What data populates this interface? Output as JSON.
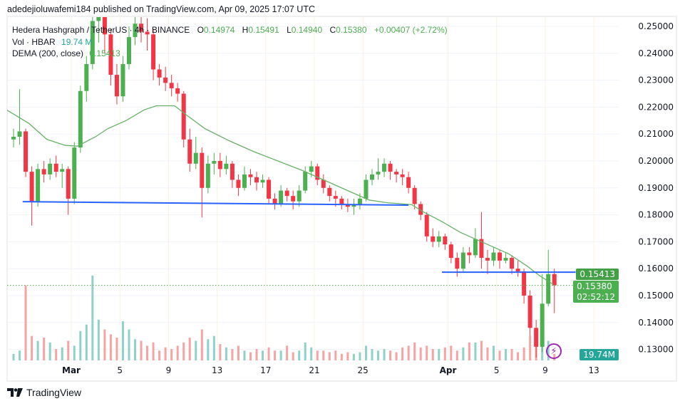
{
  "header": {
    "published": "adedejioluwafemi184 published on TradingView.com, Apr 09, 2025 17:07 UTC"
  },
  "legend": {
    "symbol": "Hedera Hashgraph / TetherUS · 4h · BINANCE",
    "open_label": "O",
    "open": "0.14974",
    "high_label": "H",
    "high": "0.15491",
    "low_label": "L",
    "low": "0.14940",
    "close_label": "C",
    "close": "0.15380",
    "change": "+0.00407 (+2.72%)",
    "vol_label": "Vol · HBAR",
    "vol_value": "19.74 M",
    "dema_label": "DEMA (200, close)",
    "dema_value": "0.15413"
  },
  "price_tags": {
    "dema": "0.15413",
    "last": "0.15380",
    "countdown": "02:52:12",
    "volume": "19.74M"
  },
  "footer": {
    "brand": "TradingView"
  },
  "colors": {
    "up": "#4caf50",
    "down": "#f23645",
    "vol_up": "#8fd1c9",
    "vol_down": "#f5a3a3",
    "dema": "#66b266",
    "hline": "#2962ff",
    "last_price": "#4caf50",
    "dema_tag": "#43a047",
    "vol_tag": "#26a69a"
  },
  "chart_data": {
    "type": "candlestick",
    "interval_drawn": "12h (approximated from 4h chart)",
    "start": "2025-02-24 00:00",
    "ylim": [
      0.12,
      0.2537
    ],
    "y_ticks": [
      "0.25000",
      "0.24000",
      "0.23000",
      "0.22000",
      "0.21000",
      "0.20000",
      "0.19000",
      "0.18000",
      "0.17000",
      "0.16000",
      "0.15000",
      "0.14000",
      "0.13000"
    ],
    "x_ticks": [
      {
        "label": "Mar",
        "date": "2025-03-01"
      },
      {
        "label": "5",
        "date": "2025-03-05"
      },
      {
        "label": "9",
        "date": "2025-03-09"
      },
      {
        "label": "13",
        "date": "2025-03-13"
      },
      {
        "label": "17",
        "date": "2025-03-17"
      },
      {
        "label": "21",
        "date": "2025-03-21"
      },
      {
        "label": "25",
        "date": "2025-03-25"
      },
      {
        "label": "Apr",
        "date": "2025-04-01"
      },
      {
        "label": "5",
        "date": "2025-04-05"
      },
      {
        "label": "9",
        "date": "2025-04-09"
      },
      {
        "label": "13",
        "date": "2025-04-13"
      }
    ],
    "ohlc": [
      [
        0.208,
        0.212,
        0.205,
        0.209
      ],
      [
        0.209,
        0.2267,
        0.206,
        0.211
      ],
      [
        0.211,
        0.212,
        0.194,
        0.196
      ],
      [
        0.196,
        0.198,
        0.176,
        0.185
      ],
      [
        0.185,
        0.199,
        0.183,
        0.197
      ],
      [
        0.197,
        0.2,
        0.192,
        0.195
      ],
      [
        0.195,
        0.201,
        0.193,
        0.199
      ],
      [
        0.199,
        0.202,
        0.194,
        0.196
      ],
      [
        0.196,
        0.199,
        0.19,
        0.197
      ],
      [
        0.197,
        0.198,
        0.18,
        0.186
      ],
      [
        0.186,
        0.207,
        0.184,
        0.205
      ],
      [
        0.205,
        0.228,
        0.203,
        0.226
      ],
      [
        0.226,
        0.239,
        0.222,
        0.236
      ],
      [
        0.236,
        0.258,
        0.234,
        0.252
      ],
      [
        0.252,
        0.262,
        0.244,
        0.256
      ],
      [
        0.256,
        0.258,
        0.24,
        0.247
      ],
      [
        0.247,
        0.249,
        0.228,
        0.232
      ],
      [
        0.232,
        0.236,
        0.221,
        0.224
      ],
      [
        0.224,
        0.239,
        0.222,
        0.236
      ],
      [
        0.236,
        0.25,
        0.234,
        0.246
      ],
      [
        0.246,
        0.258,
        0.243,
        0.251
      ],
      [
        0.251,
        0.256,
        0.244,
        0.248
      ],
      [
        0.248,
        0.253,
        0.241,
        0.247
      ],
      [
        0.247,
        0.249,
        0.23,
        0.234
      ],
      [
        0.234,
        0.236,
        0.228,
        0.231
      ],
      [
        0.231,
        0.235,
        0.226,
        0.229
      ],
      [
        0.229,
        0.232,
        0.224,
        0.227
      ],
      [
        0.227,
        0.229,
        0.222,
        0.225
      ],
      [
        0.225,
        0.226,
        0.205,
        0.208
      ],
      [
        0.208,
        0.212,
        0.196,
        0.199
      ],
      [
        0.199,
        0.209,
        0.197,
        0.203
      ],
      [
        0.203,
        0.205,
        0.179,
        0.19
      ],
      [
        0.19,
        0.202,
        0.188,
        0.199
      ],
      [
        0.199,
        0.203,
        0.195,
        0.2
      ],
      [
        0.2,
        0.203,
        0.194,
        0.197
      ],
      [
        0.197,
        0.202,
        0.195,
        0.199
      ],
      [
        0.199,
        0.2,
        0.19,
        0.193
      ],
      [
        0.193,
        0.195,
        0.187,
        0.19
      ],
      [
        0.19,
        0.198,
        0.189,
        0.195
      ],
      [
        0.195,
        0.197,
        0.191,
        0.194
      ],
      [
        0.194,
        0.196,
        0.189,
        0.192
      ],
      [
        0.192,
        0.195,
        0.19,
        0.193
      ],
      [
        0.193,
        0.194,
        0.184,
        0.186
      ],
      [
        0.186,
        0.188,
        0.182,
        0.184
      ],
      [
        0.184,
        0.191,
        0.183,
        0.189
      ],
      [
        0.189,
        0.19,
        0.185,
        0.187
      ],
      [
        0.187,
        0.189,
        0.182,
        0.185
      ],
      [
        0.185,
        0.191,
        0.183,
        0.189
      ],
      [
        0.189,
        0.198,
        0.188,
        0.196
      ],
      [
        0.196,
        0.2,
        0.194,
        0.198
      ],
      [
        0.198,
        0.199,
        0.191,
        0.193
      ],
      [
        0.193,
        0.195,
        0.188,
        0.19
      ],
      [
        0.19,
        0.191,
        0.185,
        0.187
      ],
      [
        0.187,
        0.189,
        0.183,
        0.186
      ],
      [
        0.186,
        0.187,
        0.182,
        0.184
      ],
      [
        0.184,
        0.186,
        0.181,
        0.183
      ],
      [
        0.183,
        0.186,
        0.18,
        0.184
      ],
      [
        0.184,
        0.188,
        0.182,
        0.186
      ],
      [
        0.186,
        0.195,
        0.185,
        0.193
      ],
      [
        0.193,
        0.197,
        0.191,
        0.195
      ],
      [
        0.195,
        0.201,
        0.193,
        0.196
      ],
      [
        0.196,
        0.201,
        0.194,
        0.199
      ],
      [
        0.199,
        0.2,
        0.193,
        0.196
      ],
      [
        0.196,
        0.197,
        0.192,
        0.195
      ],
      [
        0.195,
        0.197,
        0.191,
        0.194
      ],
      [
        0.194,
        0.196,
        0.188,
        0.19
      ],
      [
        0.19,
        0.191,
        0.182,
        0.184
      ],
      [
        0.184,
        0.185,
        0.178,
        0.18
      ],
      [
        0.18,
        0.181,
        0.17,
        0.172
      ],
      [
        0.172,
        0.175,
        0.168,
        0.17
      ],
      [
        0.17,
        0.174,
        0.168,
        0.172
      ],
      [
        0.172,
        0.173,
        0.167,
        0.169
      ],
      [
        0.169,
        0.17,
        0.162,
        0.164
      ],
      [
        0.164,
        0.166,
        0.157,
        0.16
      ],
      [
        0.16,
        0.168,
        0.159,
        0.166
      ],
      [
        0.166,
        0.168,
        0.162,
        0.165
      ],
      [
        0.165,
        0.175,
        0.164,
        0.171
      ],
      [
        0.171,
        0.181,
        0.16,
        0.164
      ],
      [
        0.164,
        0.167,
        0.158,
        0.163
      ],
      [
        0.163,
        0.168,
        0.161,
        0.166
      ],
      [
        0.166,
        0.167,
        0.16,
        0.163
      ],
      [
        0.163,
        0.166,
        0.162,
        0.164
      ],
      [
        0.164,
        0.165,
        0.158,
        0.16
      ],
      [
        0.16,
        0.163,
        0.157,
        0.159
      ],
      [
        0.159,
        0.16,
        0.147,
        0.15
      ],
      [
        0.15,
        0.152,
        0.135,
        0.138
      ],
      [
        0.138,
        0.141,
        0.127,
        0.131
      ],
      [
        0.131,
        0.158,
        0.129,
        0.147
      ],
      [
        0.147,
        0.167,
        0.146,
        0.158
      ],
      [
        0.158,
        0.16,
        0.1435,
        0.1538
      ]
    ],
    "volume_m": [
      20,
      30,
      230,
      75,
      60,
      70,
      55,
      35,
      40,
      60,
      45,
      90,
      110,
      260,
      125,
      95,
      80,
      70,
      120,
      95,
      65,
      60,
      45,
      55,
      30,
      40,
      35,
      45,
      55,
      70,
      60,
      95,
      65,
      75,
      50,
      40,
      35,
      45,
      30,
      25,
      35,
      30,
      40,
      30,
      30,
      45,
      25,
      30,
      55,
      40,
      30,
      30,
      25,
      30,
      20,
      25,
      20,
      25,
      45,
      35,
      30,
      35,
      30,
      25,
      40,
      45,
      55,
      40,
      45,
      35,
      35,
      40,
      45,
      30,
      40,
      55,
      55,
      60,
      40,
      45,
      30,
      35,
      35,
      25,
      40,
      75,
      100,
      90,
      60,
      20
    ],
    "dema": [
      [
        "2025-02-23 16:00",
        0.219
      ],
      [
        "2025-02-25 12:00",
        0.214
      ],
      [
        "2025-02-27 00:00",
        0.208
      ],
      [
        "2025-02-28 12:00",
        0.2058
      ],
      [
        "2025-03-01 12:00",
        0.2055
      ],
      [
        "2025-03-03 00:00",
        0.209
      ],
      [
        "2025-03-04 00:00",
        0.212
      ],
      [
        "2025-03-05 12:00",
        0.215
      ],
      [
        "2025-03-07 00:00",
        0.219
      ],
      [
        "2025-03-08 00:00",
        0.2205
      ],
      [
        "2025-03-09 12:00",
        0.2205
      ],
      [
        "2025-03-10 12:00",
        0.217
      ],
      [
        "2025-03-12 00:00",
        0.212
      ],
      [
        "2025-03-14 00:00",
        0.2075
      ],
      [
        "2025-03-16 00:00",
        0.2035
      ],
      [
        "2025-03-18 00:00",
        0.2
      ],
      [
        "2025-03-20 00:00",
        0.1965
      ],
      [
        "2025-03-22 00:00",
        0.1925
      ],
      [
        "2025-03-24 00:00",
        0.1885
      ],
      [
        "2025-03-25 12:00",
        0.1855
      ],
      [
        "2025-03-27 00:00",
        0.1845
      ],
      [
        "2025-03-29 00:00",
        0.1838
      ],
      [
        "2025-03-30 00:00",
        0.181
      ],
      [
        "2025-03-31 12:00",
        0.1775
      ],
      [
        "2025-04-02 00:00",
        0.1735
      ],
      [
        "2025-04-04 00:00",
        0.1695
      ],
      [
        "2025-04-06 00:00",
        0.1655
      ],
      [
        "2025-04-07 12:00",
        0.161
      ],
      [
        "2025-04-08 12:00",
        0.1575
      ],
      [
        "2025-04-09 16:00",
        0.15413
      ]
    ],
    "horizontal_lines": [
      {
        "from": [
          "2025-02-25 00:00",
          0.1849
        ],
        "to": [
          "2025-03-28 18:00",
          0.1836
        ]
      },
      {
        "from": [
          "2025-03-31 12:00",
          0.1587
        ],
        "to": [
          "2025-04-11 12:00",
          0.1587
        ]
      }
    ],
    "last_price": 0.1538
  }
}
